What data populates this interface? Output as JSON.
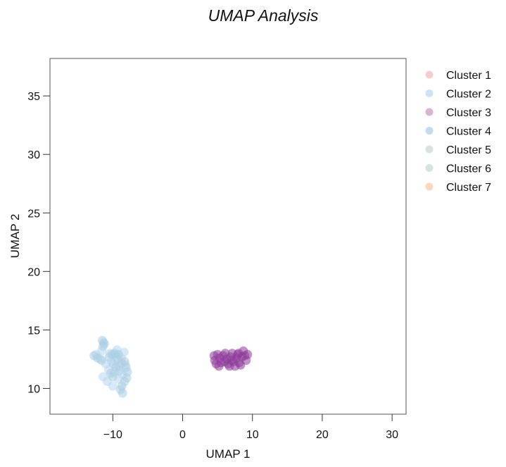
{
  "chart_data": {
    "type": "scatter",
    "title": "UMAP Analysis",
    "xlabel": "UMAP 1",
    "ylabel": "UMAP 2",
    "xlim": [
      -19,
      32
    ],
    "ylim": [
      7.8,
      38.2
    ],
    "x_ticks": [
      -10,
      0,
      10,
      20,
      30
    ],
    "x_tick_labels": [
      "−10",
      "0",
      "10",
      "20",
      "30"
    ],
    "y_ticks": [
      10,
      15,
      20,
      25,
      30,
      35
    ],
    "y_tick_labels": [
      "10",
      "15",
      "20",
      "25",
      "30",
      "35"
    ],
    "grid": false,
    "legend": {
      "position": "right"
    },
    "series": [
      {
        "name": "Cluster 1",
        "color": "#f2b8bd",
        "points": []
      },
      {
        "name": "Cluster 2",
        "color": "#b7d5f2",
        "points": [
          [
            -12.4,
            12.9
          ],
          [
            -11.8,
            12.5
          ],
          [
            -11.6,
            13.2
          ],
          [
            -11.2,
            13.8
          ],
          [
            -11.0,
            12.1
          ],
          [
            -10.6,
            11.6
          ],
          [
            -10.4,
            13.0
          ],
          [
            -10.2,
            12.3
          ],
          [
            -9.8,
            11.4
          ],
          [
            -9.6,
            12.8
          ],
          [
            -9.4,
            13.3
          ],
          [
            -9.0,
            11.9
          ],
          [
            -8.8,
            12.6
          ],
          [
            -8.6,
            11.2
          ],
          [
            -8.4,
            13.1
          ],
          [
            -8.2,
            12.0
          ],
          [
            -11.4,
            11.0
          ],
          [
            -10.8,
            10.6
          ],
          [
            -9.2,
            10.8
          ],
          [
            -10.0,
            10.2
          ]
        ]
      },
      {
        "name": "Cluster 3",
        "color": "#c496c6",
        "points": []
      },
      {
        "name": "Cluster 4",
        "color": "#aacde2",
        "points": [
          [
            -12.7,
            12.8
          ],
          [
            -12.2,
            12.6
          ],
          [
            -11.5,
            14.1
          ],
          [
            -11.3,
            13.9
          ],
          [
            -11.4,
            13.6
          ],
          [
            -10.5,
            12.7
          ],
          [
            -10.1,
            12.9
          ],
          [
            -9.7,
            13.0
          ],
          [
            -9.3,
            12.5
          ],
          [
            -9.9,
            12.1
          ],
          [
            -9.5,
            11.8
          ],
          [
            -10.3,
            11.3
          ],
          [
            -10.0,
            11.0
          ],
          [
            -9.1,
            11.5
          ],
          [
            -8.8,
            12.2
          ],
          [
            -8.3,
            12.3
          ],
          [
            -8.1,
            11.8
          ],
          [
            -7.9,
            11.4
          ],
          [
            -8.0,
            10.9
          ],
          [
            -8.3,
            10.6
          ],
          [
            -8.7,
            10.2
          ],
          [
            -8.9,
            9.9
          ],
          [
            -8.6,
            9.6
          ],
          [
            -9.2,
            12.9
          ],
          [
            -11.6,
            12.4
          ]
        ]
      },
      {
        "name": "Cluster 5",
        "color": "#c8d3db",
        "points": []
      },
      {
        "name": "Cluster 6",
        "color": "#bcdcca",
        "points": []
      },
      {
        "name": "Cluster 7",
        "color": "#f8c6a4",
        "points": []
      },
      {
        "name": "",
        "color": "#8e3b9a",
        "points": [
          [
            4.5,
            12.8
          ],
          [
            4.6,
            12.4
          ],
          [
            4.8,
            12.1
          ],
          [
            5.0,
            12.9
          ],
          [
            5.3,
            12.6
          ],
          [
            5.5,
            12.2
          ],
          [
            5.8,
            12.8
          ],
          [
            6.1,
            13.0
          ],
          [
            6.3,
            12.5
          ],
          [
            6.5,
            12.1
          ],
          [
            6.7,
            11.9
          ],
          [
            6.9,
            12.7
          ],
          [
            7.1,
            13.0
          ],
          [
            7.3,
            12.3
          ],
          [
            7.5,
            11.9
          ],
          [
            7.7,
            12.6
          ],
          [
            7.9,
            12.9
          ],
          [
            8.1,
            12.2
          ],
          [
            8.3,
            12.0
          ],
          [
            8.5,
            12.7
          ],
          [
            8.7,
            13.2
          ],
          [
            8.9,
            12.8
          ],
          [
            9.1,
            12.4
          ],
          [
            9.3,
            12.9
          ],
          [
            6.0,
            12.3
          ],
          [
            7.0,
            12.4
          ],
          [
            8.0,
            13.0
          ],
          [
            5.2,
            11.9
          ]
        ]
      }
    ]
  }
}
